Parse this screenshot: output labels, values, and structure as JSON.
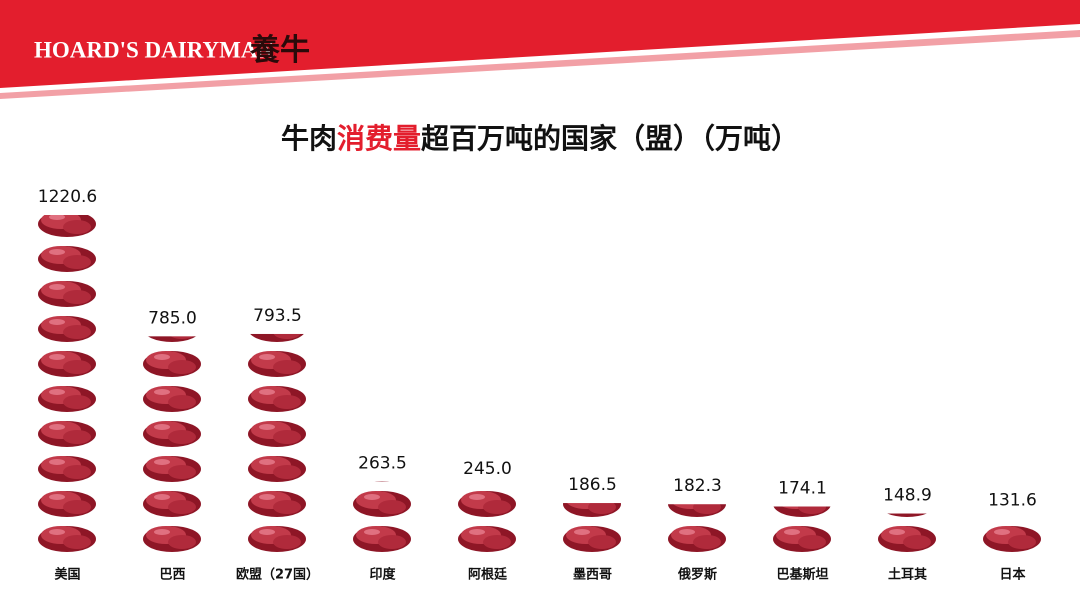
{
  "header": {
    "brand": "HOARD'S DAIRYMAN",
    "brand_cn": "養牛"
  },
  "chart_data": {
    "type": "bar",
    "title_parts": [
      "牛肉",
      "消费量",
      "超百万吨的国家（盟）（万吨）"
    ],
    "categories": [
      "美国",
      "巴西",
      "欧盟（27国）",
      "印度",
      "阿根廷",
      "墨西哥",
      "俄罗斯",
      "巴基斯坦",
      "土耳其",
      "日本"
    ],
    "values": [
      1220.6,
      785.0,
      793.5,
      263.5,
      245.0,
      186.5,
      182.3,
      174.1,
      148.9,
      131.6
    ],
    "value_labels": [
      "1220.6",
      "785.0",
      "793.5",
      "263.5",
      "245.0",
      "186.5",
      "182.3",
      "174.1",
      "148.9",
      "131.6"
    ],
    "color": "#a31d2c"
  }
}
